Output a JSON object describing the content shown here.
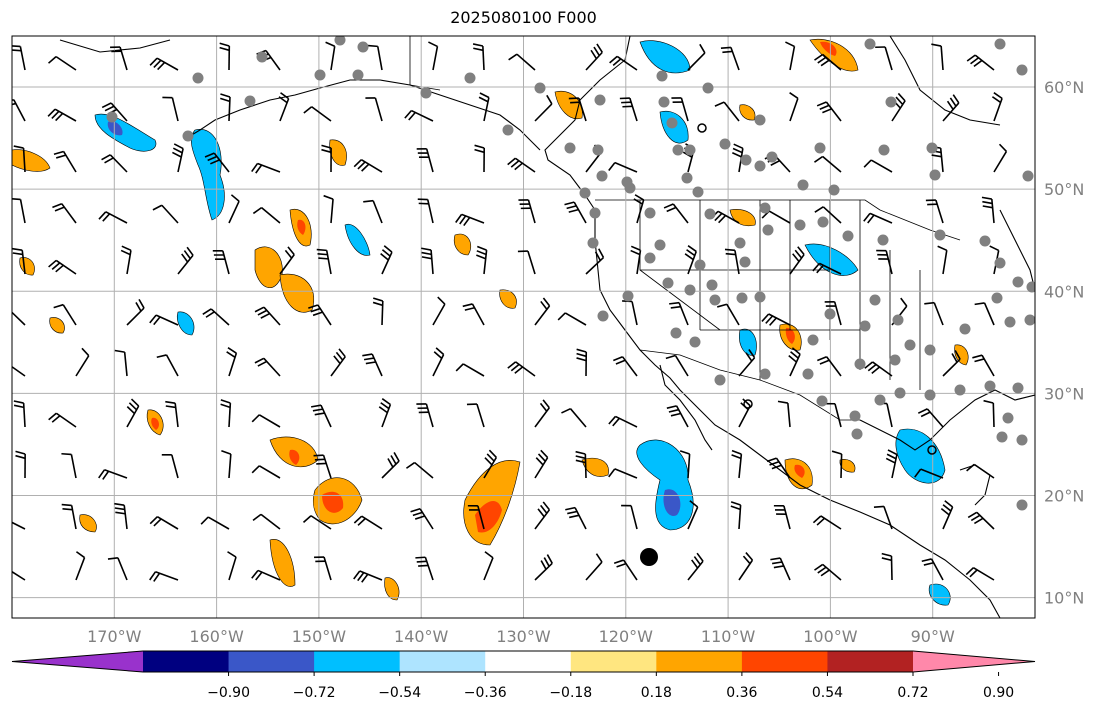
{
  "title": "2025080100 F000",
  "map": {
    "lon_range": [
      -180,
      -80
    ],
    "lat_range": [
      8,
      65
    ],
    "lat_labels": [
      "60°N",
      "50°N",
      "40°N",
      "30°N",
      "20°N",
      "10°N"
    ],
    "lon_labels": [
      "170°W",
      "160°W",
      "150°W",
      "140°W",
      "130°W",
      "120°W",
      "110°W",
      "100°W",
      "90°W"
    ],
    "colors": {
      "negative_strong": "#3a57c8",
      "negative": "#00bfff",
      "negative_weak": "#aee4ff",
      "positive_weak": "#ffe680",
      "positive": "#ffa500",
      "positive_strong": "#ff4500",
      "station": "#808080",
      "barb": "#000000",
      "grid": "#b0b0b0"
    }
  },
  "colorbar": {
    "ticks": [
      "−0.90",
      "−0.72",
      "−0.54",
      "−0.36",
      "−0.18",
      "0.18",
      "0.36",
      "0.54",
      "0.72",
      "0.90"
    ],
    "colors": [
      "#9932cc",
      "#000080",
      "#3a57c8",
      "#00bfff",
      "#aee4ff",
      "#ffffff",
      "#ffe680",
      "#ffa500",
      "#ff4500",
      "#b22222",
      "#ff88aa"
    ]
  }
}
